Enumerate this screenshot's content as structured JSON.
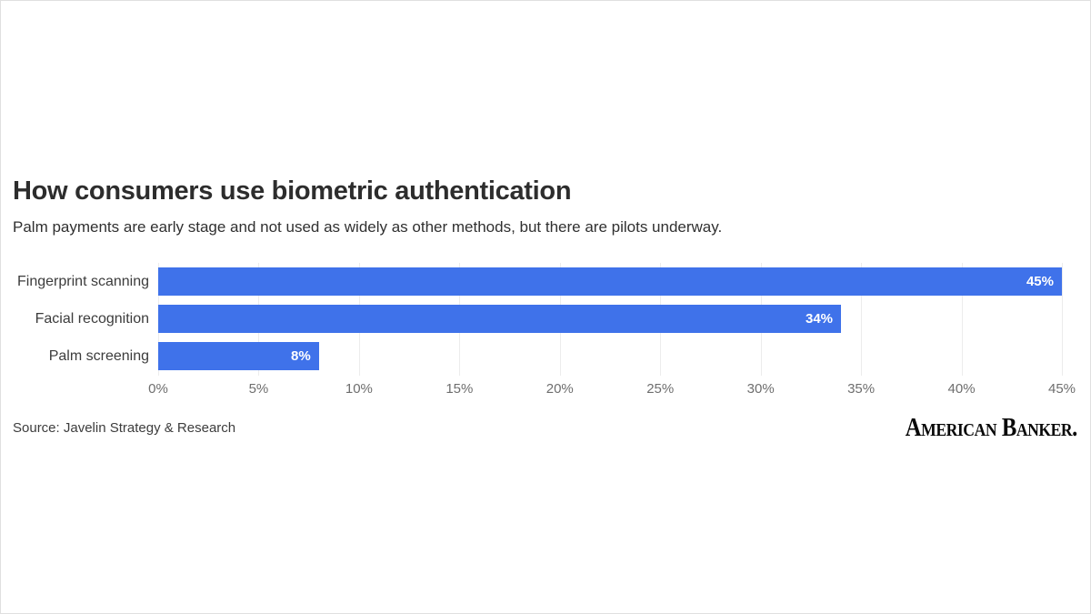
{
  "header": {
    "title": "How consumers use biometric authentication",
    "subtitle": "Palm payments are early stage and not used as widely as other methods, but there are pilots underway."
  },
  "chart_data": {
    "type": "bar",
    "orientation": "horizontal",
    "title": "How consumers use biometric authentication",
    "subtitle": "Palm payments are early stage and not used as widely as other methods, but there are pilots underway.",
    "categories": [
      "Fingerprint scanning",
      "Facial recognition",
      "Palm screening"
    ],
    "values": [
      45,
      34,
      8
    ],
    "value_labels": [
      "45%",
      "34%",
      "8%"
    ],
    "xlabel": "",
    "ylabel": "",
    "xlim": [
      0,
      45
    ],
    "tick_values": [
      0,
      5,
      10,
      15,
      20,
      25,
      30,
      35,
      40,
      45
    ],
    "tick_labels": [
      "0%",
      "5%",
      "10%",
      "15%",
      "20%",
      "25%",
      "30%",
      "35%",
      "40%",
      "45%"
    ],
    "grid": true,
    "legend": false,
    "colors": {
      "bar": "#3f72ea",
      "value_label": "#ffffff",
      "gridline": "#ececec",
      "axis_text": "#6e6e6e",
      "category_text": "#3c3c3c"
    }
  },
  "footer": {
    "source": "Source: Javelin Strategy & Research",
    "brand": "American Banker."
  }
}
